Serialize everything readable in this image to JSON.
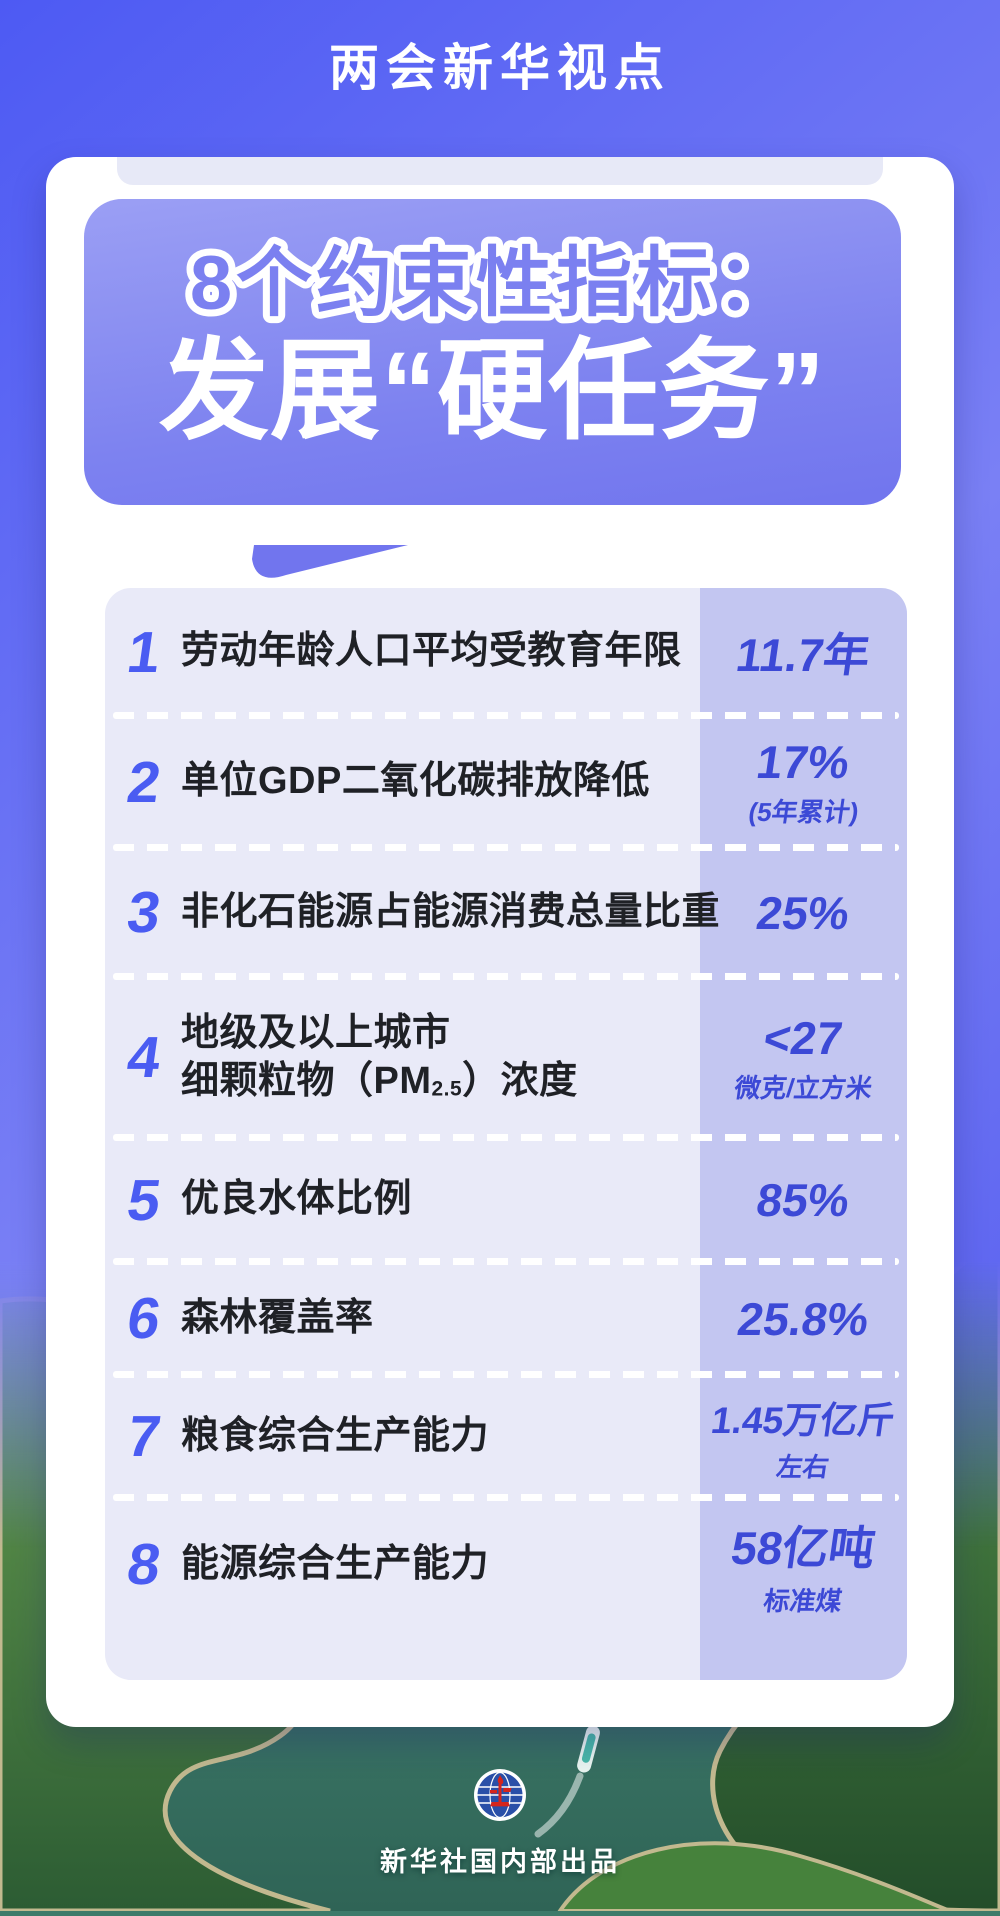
{
  "banner": {
    "title": "两会新华视点"
  },
  "bubble": {
    "line1": "8个约束性指标：",
    "line2": "发展“硬任务”"
  },
  "table": {
    "rows": [
      {
        "num": "1",
        "label_lines": [
          [
            "劳动年龄人口平均受教育年限"
          ]
        ],
        "value": "11.7年",
        "sub": ""
      },
      {
        "num": "2",
        "label_lines": [
          [
            "单位GDP二氧化碳排放降低"
          ]
        ],
        "value": "17%",
        "sub": "(5年累计)"
      },
      {
        "num": "3",
        "label_lines": [
          [
            "非化石能源占能源消费总量比重"
          ]
        ],
        "value": "25%",
        "sub": ""
      },
      {
        "num": "4",
        "label_lines": [
          [
            "地级及以上城市"
          ],
          [
            "细颗粒物（PM",
            {
              "sub": "2.5"
            },
            "）浓度"
          ]
        ],
        "value": "<27",
        "sub": "微克/立方米"
      },
      {
        "num": "5",
        "label_lines": [
          [
            "优良水体比例"
          ]
        ],
        "value": "85%",
        "sub": ""
      },
      {
        "num": "6",
        "label_lines": [
          [
            "森林覆盖率"
          ]
        ],
        "value": "25.8%",
        "sub": ""
      },
      {
        "num": "7",
        "label_lines": [
          [
            "粮食综合生产能力"
          ]
        ],
        "value": "1.45万亿斤",
        "sub": "左右"
      },
      {
        "num": "8",
        "label_lines": [
          [
            "能源综合生产能力"
          ]
        ],
        "value": "58亿吨",
        "sub": "标准煤"
      }
    ]
  },
  "footer": {
    "credit": "新华社国内部出品",
    "logo": "xinhua-logo"
  },
  "colors": {
    "bg_dark": "#4d5af3",
    "bg_light": "#7a80f5",
    "bubble_top": "#9b9ff4",
    "bubble_bottom": "#7175ee",
    "title_outline_fill": "#7b80f0",
    "table_bg": "#e9eaf8",
    "value_col_bg": "#c3c6f1",
    "number_blue": "#4a5cf2",
    "value_blue": "#3c49d6",
    "label_dark": "#1f2126",
    "water_green": "#3e7a6a"
  }
}
